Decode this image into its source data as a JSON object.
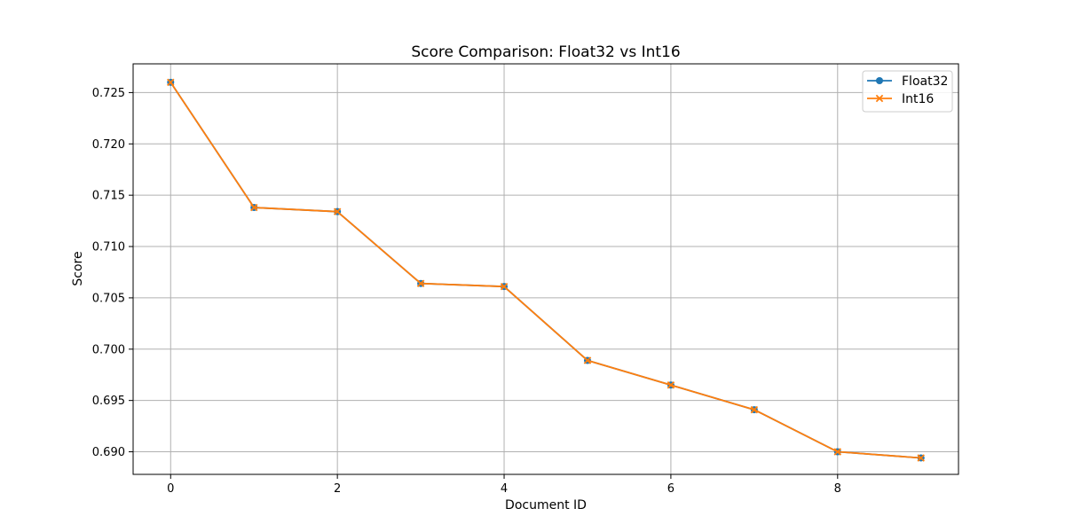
{
  "chart_data": {
    "type": "line",
    "title": "Score Comparison: Float32 vs Int16",
    "xlabel": "Document ID",
    "ylabel": "Score",
    "x": [
      0,
      1,
      2,
      3,
      4,
      5,
      6,
      7,
      8,
      9
    ],
    "xlim": [
      -0.45,
      9.45
    ],
    "ylim": [
      0.6878,
      0.7278
    ],
    "xticks": [
      0,
      2,
      4,
      6,
      8
    ],
    "yticks": [
      0.69,
      0.695,
      0.7,
      0.705,
      0.71,
      0.715,
      0.72,
      0.725
    ],
    "ytick_labels": [
      "0.690",
      "0.695",
      "0.700",
      "0.705",
      "0.710",
      "0.715",
      "0.720",
      "0.725"
    ],
    "grid": true,
    "legend_position": "top-right",
    "series": [
      {
        "name": "Float32",
        "color": "#1f77b4",
        "marker": "circle",
        "values": [
          0.726,
          0.7138,
          0.7134,
          0.7064,
          0.7061,
          0.6989,
          0.6965,
          0.6941,
          0.69,
          0.6894
        ]
      },
      {
        "name": "Int16",
        "color": "#ff7f0e",
        "marker": "x",
        "values": [
          0.726,
          0.7138,
          0.7134,
          0.7064,
          0.7061,
          0.6989,
          0.6965,
          0.6941,
          0.69,
          0.6894
        ]
      }
    ]
  }
}
